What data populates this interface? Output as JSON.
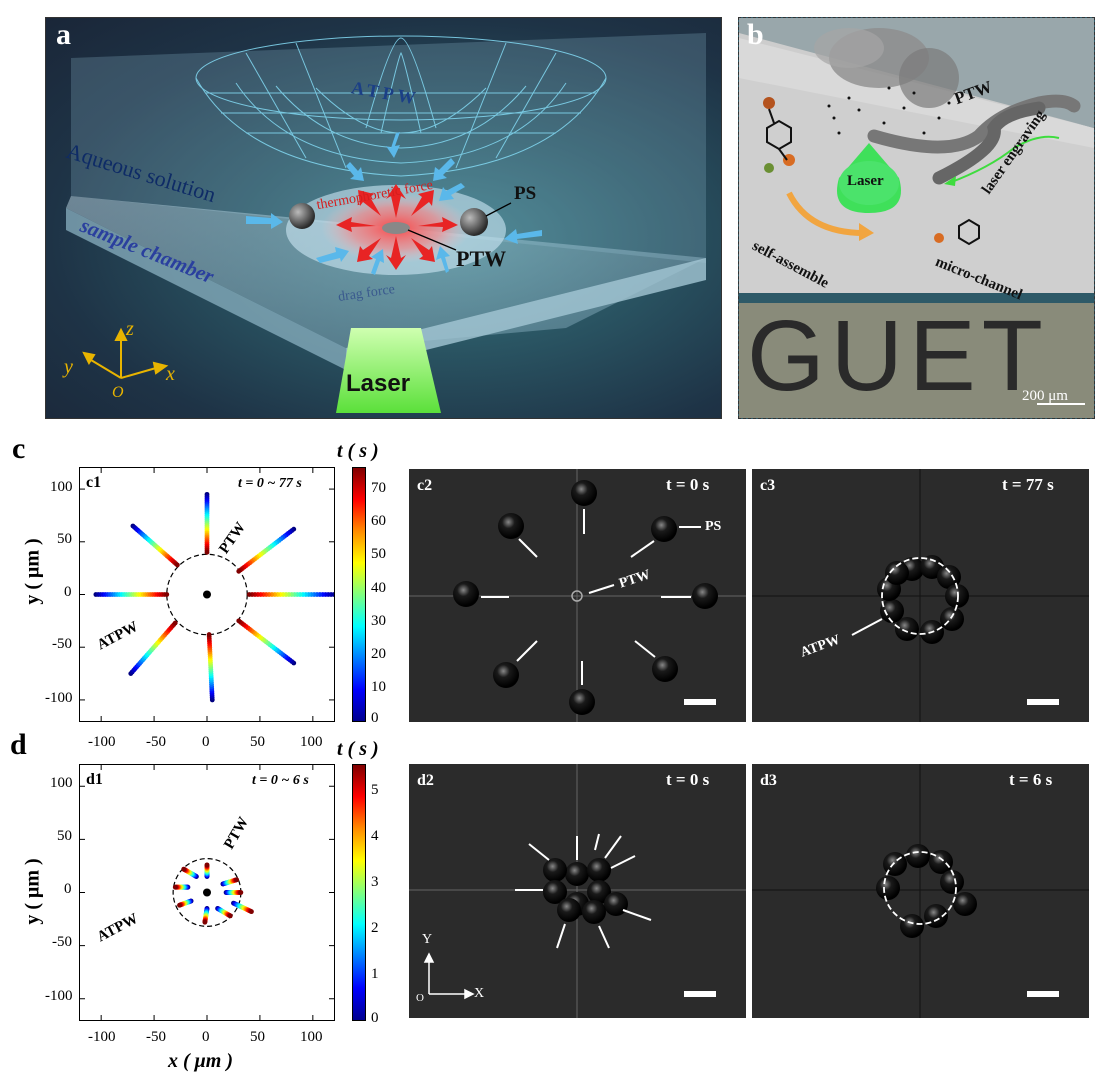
{
  "panel_a": {
    "letter": "a",
    "labels": {
      "atpw": "ATPW",
      "aqueous": "Aqueous solution",
      "chamber": "sample chamber",
      "thermo": "thermophoretic force",
      "ps": "PS",
      "ptw": "PTW",
      "drag": "drag force",
      "laser": "Laser"
    },
    "axes": {
      "z": "z",
      "y": "y",
      "x": "x",
      "o": "O"
    }
  },
  "panel_b": {
    "letter": "b",
    "labels": {
      "ptw": "PTW",
      "laser": "Laser",
      "engraving": "laser engraving",
      "self_assemble": "self-assemble",
      "micro_channel": "micro-channel",
      "guet": "GUET",
      "scalebar": "200 μm"
    }
  },
  "panel_c": {
    "letter": "c",
    "plot_label": "c1",
    "time_range": "t = 0 ~ 77 s",
    "colorbar_title": "t ( s )",
    "colorbar_ticks": [
      "70",
      "60",
      "50",
      "40",
      "30",
      "20",
      "10",
      "0"
    ],
    "ylabel": "y ( μm )",
    "xticks": [
      "-100",
      "-50",
      "0",
      "50",
      "100"
    ],
    "yticks": [
      "100",
      "50",
      "0",
      "-50",
      "-100"
    ],
    "annot_ptw": "PTW",
    "annot_atpw": "ATPW",
    "c2": {
      "label": "c2",
      "time": "t = 0 s",
      "ps": "PS",
      "ptw": "PTW"
    },
    "c3": {
      "label": "c3",
      "time": "t = 77 s",
      "atpw": "ATPW"
    }
  },
  "panel_d": {
    "letter": "d",
    "plot_label": "d1",
    "time_range": "t = 0 ~ 6 s",
    "colorbar_title": "t ( s )",
    "colorbar_ticks": [
      "5",
      "4",
      "3",
      "2",
      "1",
      "0"
    ],
    "ylabel": "y ( μm )",
    "xlabel": "x ( μm )",
    "xticks": [
      "-100",
      "-50",
      "0",
      "50",
      "100"
    ],
    "yticks": [
      "100",
      "50",
      "0",
      "-50",
      "-100"
    ],
    "annot_ptw": "PTW",
    "annot_atpw": "ATPW",
    "d2": {
      "label": "d2",
      "time": "t = 0 s",
      "axis_y": "Y",
      "axis_x": "X",
      "axis_o": "O"
    },
    "d3": {
      "label": "d3",
      "time": "t = 6 s"
    }
  },
  "chart_data": [
    {
      "type": "scatter",
      "plot_label": "c1",
      "xlabel": "",
      "ylabel": "y ( μm )",
      "xlim": [
        -120,
        120
      ],
      "ylim": [
        -120,
        120
      ],
      "colorbar": {
        "label": "t ( s )",
        "range": [
          0,
          77
        ]
      },
      "circle_radius": 38,
      "center": [
        0,
        0
      ],
      "trajectories": [
        {
          "start": [
            0,
            95
          ],
          "end": [
            0,
            40
          ]
        },
        {
          "start": [
            82,
            62
          ],
          "end": [
            30,
            22
          ]
        },
        {
          "start": [
            120,
            0
          ],
          "end": [
            40,
            0
          ]
        },
        {
          "start": [
            82,
            -65
          ],
          "end": [
            30,
            -25
          ]
        },
        {
          "start": [
            5,
            -100
          ],
          "end": [
            2,
            -38
          ]
        },
        {
          "start": [
            -72,
            -75
          ],
          "end": [
            -30,
            -27
          ]
        },
        {
          "start": [
            -105,
            0
          ],
          "end": [
            -38,
            0
          ]
        },
        {
          "start": [
            -70,
            65
          ],
          "end": [
            -28,
            28
          ]
        }
      ]
    },
    {
      "type": "scatter",
      "plot_label": "d1",
      "xlabel": "x ( μm )",
      "ylabel": "y ( μm )",
      "xlim": [
        -120,
        120
      ],
      "ylim": [
        -120,
        120
      ],
      "colorbar": {
        "label": "t ( s )",
        "range": [
          0,
          6
        ]
      },
      "circle_radius": 32,
      "center": [
        0,
        0
      ],
      "trajectories": [
        {
          "start": [
            -10,
            15
          ],
          "end": [
            -22,
            22
          ]
        },
        {
          "start": [
            0,
            15
          ],
          "end": [
            0,
            26
          ]
        },
        {
          "start": [
            15,
            8
          ],
          "end": [
            28,
            12
          ]
        },
        {
          "start": [
            25,
            -10
          ],
          "end": [
            42,
            -18
          ]
        },
        {
          "start": [
            10,
            -15
          ],
          "end": [
            22,
            -22
          ]
        },
        {
          "start": [
            0,
            -15
          ],
          "end": [
            -2,
            -28
          ]
        },
        {
          "start": [
            -15,
            -8
          ],
          "end": [
            -26,
            -12
          ]
        },
        {
          "start": [
            -18,
            5
          ],
          "end": [
            -30,
            5
          ]
        },
        {
          "start": [
            18,
            0
          ],
          "end": [
            32,
            0
          ]
        }
      ]
    }
  ]
}
